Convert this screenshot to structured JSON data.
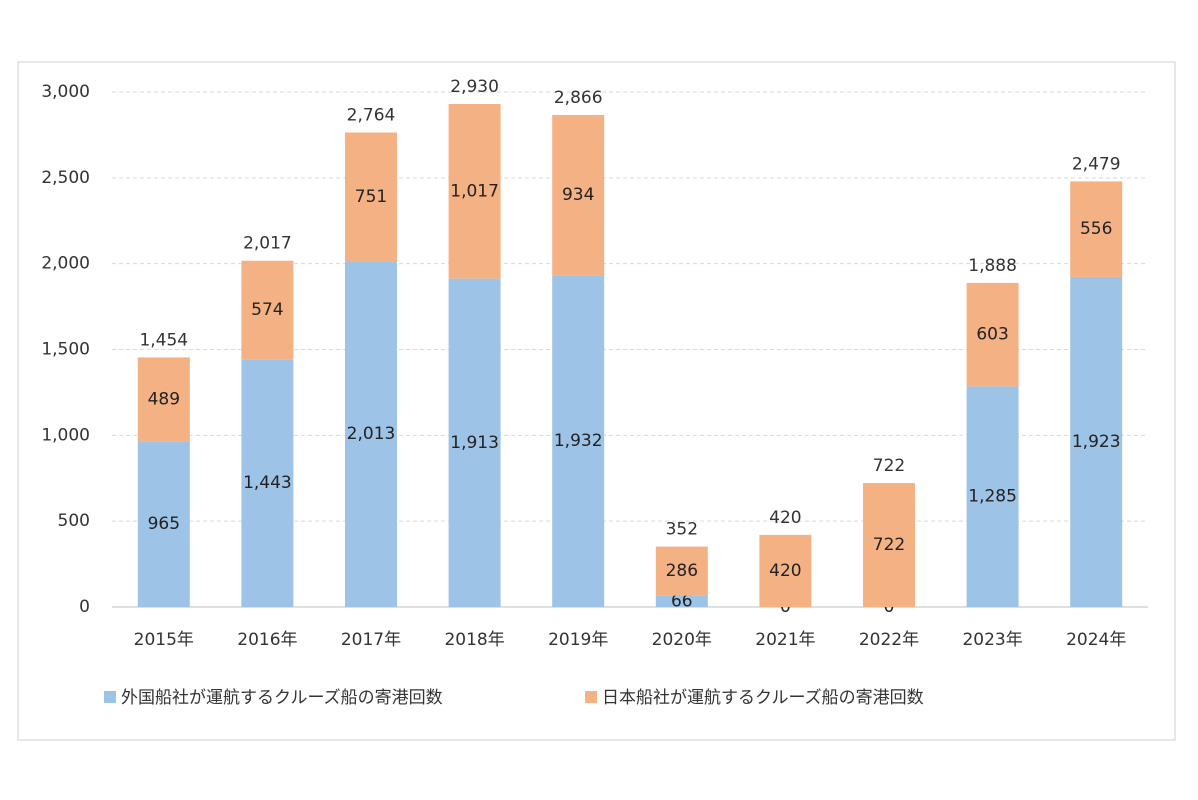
{
  "chart_data": {
    "type": "stacked_bar",
    "categories": [
      "2015年",
      "2016年",
      "2017年",
      "2018年",
      "2019年",
      "2020年",
      "2021年",
      "2022年",
      "2023年",
      "2024年"
    ],
    "series": [
      {
        "name": "外国船社が運航するクルーズ船の寄港回数",
        "color": "#9dc3e6",
        "values": [
          965,
          1443,
          2013,
          1913,
          1932,
          66,
          0,
          0,
          1285,
          1923
        ],
        "value_labels": [
          "965",
          "1,443",
          "2,013",
          "1,913",
          "1,932",
          "66",
          "0",
          "0",
          "1,285",
          "1,923"
        ]
      },
      {
        "name": "日本船社が運航するクルーズ船の寄港回数",
        "color": "#f4b183",
        "values": [
          489,
          574,
          751,
          1017,
          934,
          286,
          420,
          722,
          603,
          556
        ],
        "value_labels": [
          "489",
          "574",
          "751",
          "1,017",
          "934",
          "286",
          "420",
          "722",
          "603",
          "556"
        ]
      }
    ],
    "totals": [
      1454,
      2017,
      2764,
      2930,
      2866,
      352,
      420,
      722,
      1888,
      2479
    ],
    "total_labels": [
      "1,454",
      "2,017",
      "2,764",
      "2,930",
      "2,866",
      "352",
      "420",
      "722",
      "1,888",
      "2,479"
    ],
    "ylim": [
      0,
      3000
    ],
    "yticks": [
      0,
      500,
      {
        "value": 1000,
        "label": "1,000"
      },
      {
        "value": 1500,
        "label": "1,500"
      },
      {
        "value": 2000,
        "label": "2,000"
      },
      {
        "value": 2500,
        "label": "2,500"
      },
      {
        "value": 3000,
        "label": "3,000"
      }
    ],
    "grid": true,
    "legend": "bottom"
  }
}
